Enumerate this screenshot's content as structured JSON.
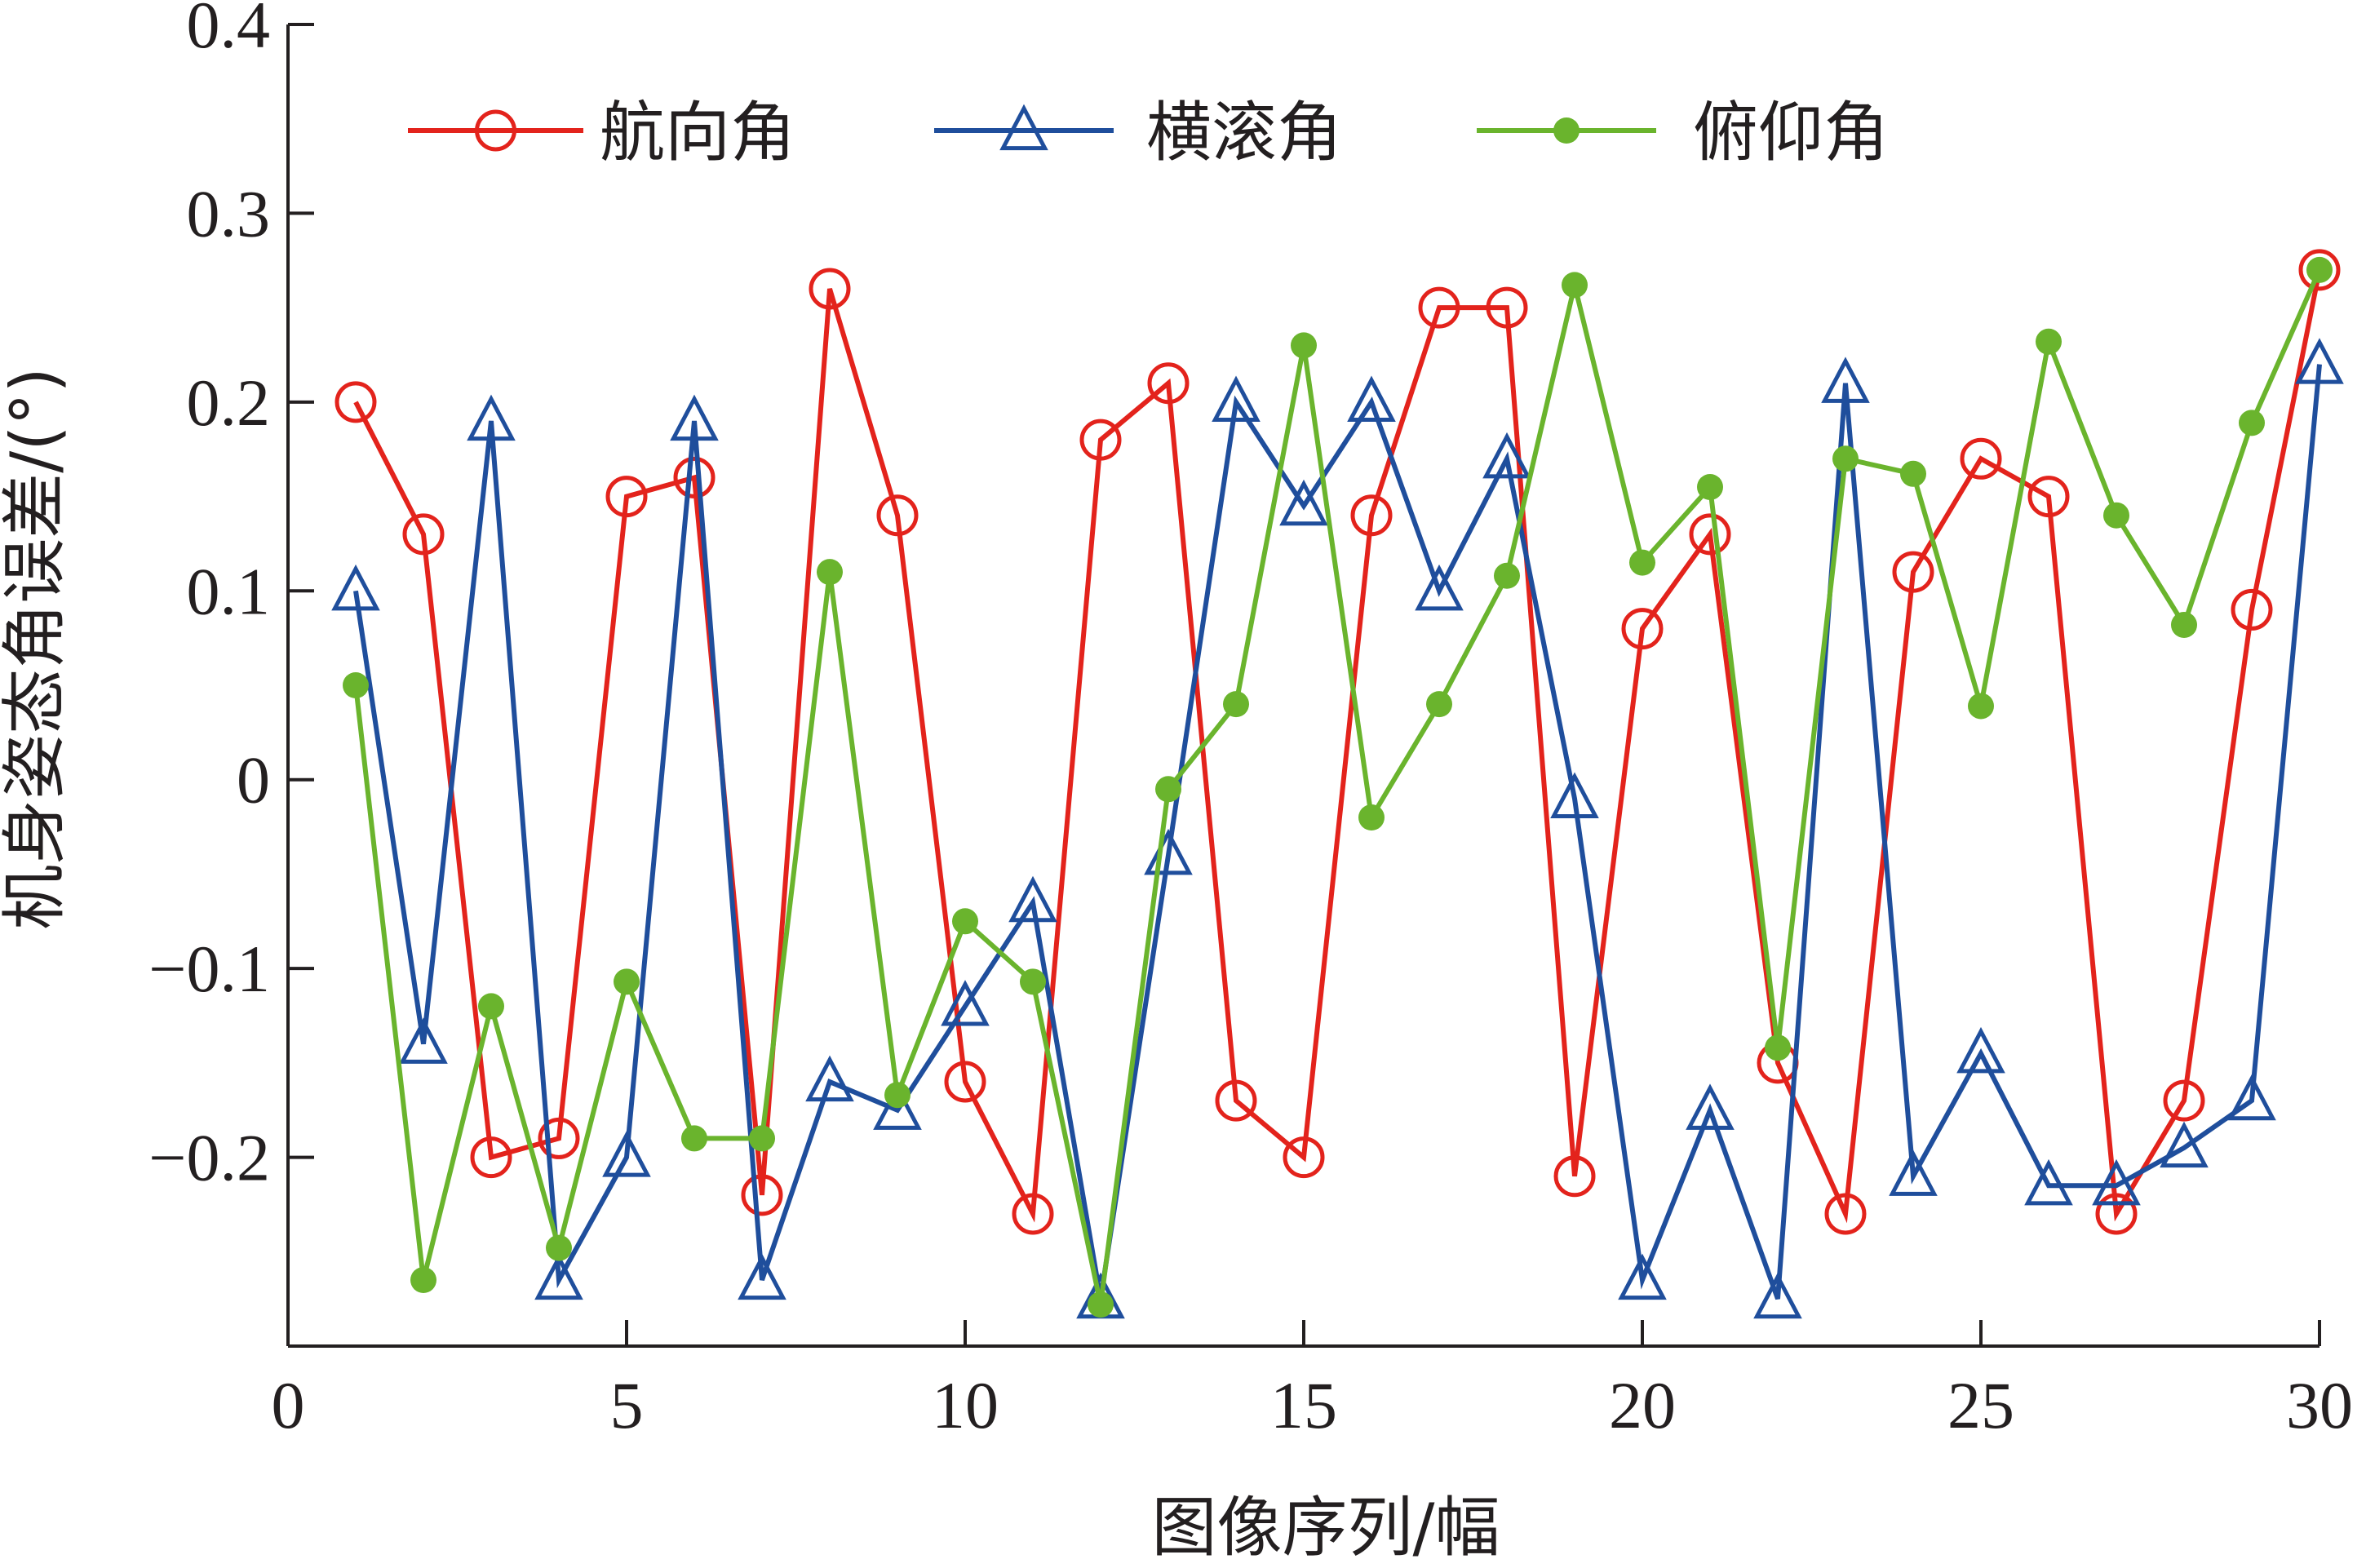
{
  "chart_data": {
    "type": "line",
    "xlabel": "图像序列/幅",
    "ylabel": "机身姿态角误差/(°)",
    "xlim": [
      0,
      30
    ],
    "ylim": [
      -0.3,
      0.4
    ],
    "xticks": [
      0,
      5,
      10,
      15,
      20,
      25,
      30
    ],
    "yticks": [
      0.4,
      0.3,
      0.2,
      0.1,
      0,
      -0.1,
      -0.2
    ],
    "ytick_labels": [
      "0.4",
      "0.3",
      "0.2",
      "0.1",
      "0",
      "−0.1",
      "−0.2"
    ],
    "grid": false,
    "legend_position": "top",
    "x": [
      1,
      2,
      3,
      4,
      5,
      6,
      7,
      8,
      9,
      10,
      11,
      12,
      13,
      14,
      15,
      16,
      17,
      18,
      19,
      20,
      21,
      22,
      23,
      24,
      25,
      26,
      27,
      28,
      29,
      30
    ],
    "series": [
      {
        "name": "航向角",
        "color": "#e3231c",
        "marker": "open-circle",
        "values": [
          0.2,
          0.13,
          -0.2,
          -0.19,
          0.15,
          0.16,
          -0.22,
          0.26,
          0.14,
          -0.16,
          -0.23,
          0.18,
          0.21,
          -0.17,
          -0.2,
          0.14,
          0.25,
          0.25,
          -0.21,
          0.08,
          0.13,
          -0.15,
          -0.23,
          0.11,
          0.17,
          0.15,
          -0.23,
          -0.17,
          0.09,
          0.27
        ]
      },
      {
        "name": "横滚角",
        "color": "#1f4e9c",
        "marker": "open-triangle",
        "values": [
          0.1,
          -0.14,
          0.19,
          -0.265,
          -0.2,
          0.19,
          -0.265,
          -0.16,
          -0.175,
          -0.12,
          -0.065,
          -0.275,
          -0.04,
          0.2,
          0.145,
          0.2,
          0.1,
          0.17,
          -0.01,
          -0.265,
          -0.175,
          -0.275,
          0.21,
          -0.21,
          -0.145,
          -0.215,
          -0.215,
          -0.195,
          -0.17,
          0.22
        ]
      },
      {
        "name": "俯仰角",
        "color": "#6ab42d",
        "marker": "filled-circle",
        "values": [
          0.05,
          -0.265,
          -0.12,
          -0.248,
          -0.107,
          -0.19,
          -0.19,
          0.11,
          -0.167,
          -0.075,
          -0.107,
          -0.278,
          -0.005,
          0.04,
          0.23,
          -0.02,
          0.04,
          0.108,
          0.262,
          0.115,
          0.155,
          -0.142,
          0.17,
          0.162,
          0.039,
          0.232,
          0.14,
          0.082,
          0.189,
          0.27
        ]
      }
    ]
  }
}
